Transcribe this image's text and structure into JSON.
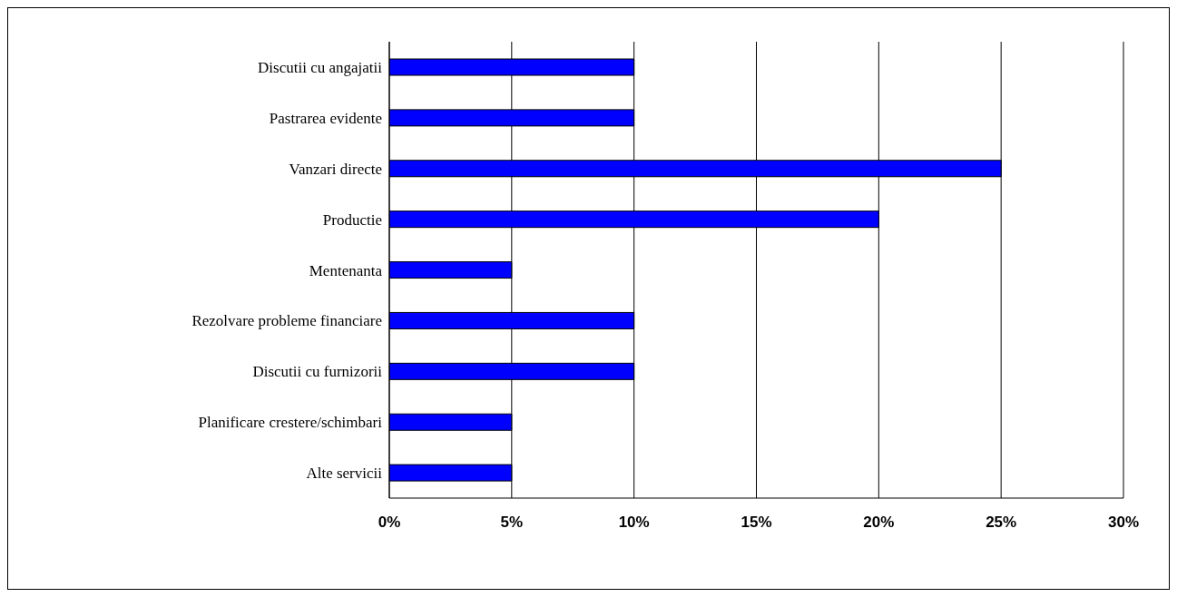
{
  "chart_data": {
    "type": "bar",
    "orientation": "horizontal",
    "categories": [
      "Discutii cu angajatii",
      "Pastrarea evidente",
      "Vanzari directe",
      "Productie",
      "Mentenanta",
      "Rezolvare probleme financiare",
      "Discutii cu furnizorii",
      "Planificare crestere/schimbari",
      "Alte servicii"
    ],
    "values": [
      10,
      10,
      25,
      20,
      5,
      10,
      10,
      5,
      5
    ],
    "color": "#0000ff",
    "xlim": [
      0,
      30
    ],
    "xticks": [
      {
        "value": 0,
        "label": "0%"
      },
      {
        "value": 5,
        "label": "5%"
      },
      {
        "value": 10,
        "label": "10%"
      },
      {
        "value": 15,
        "label": "15%"
      },
      {
        "value": 20,
        "label": "20%"
      },
      {
        "value": 25,
        "label": "25%"
      },
      {
        "value": 30,
        "label": "30%"
      }
    ],
    "grid": "x",
    "legend": false
  }
}
